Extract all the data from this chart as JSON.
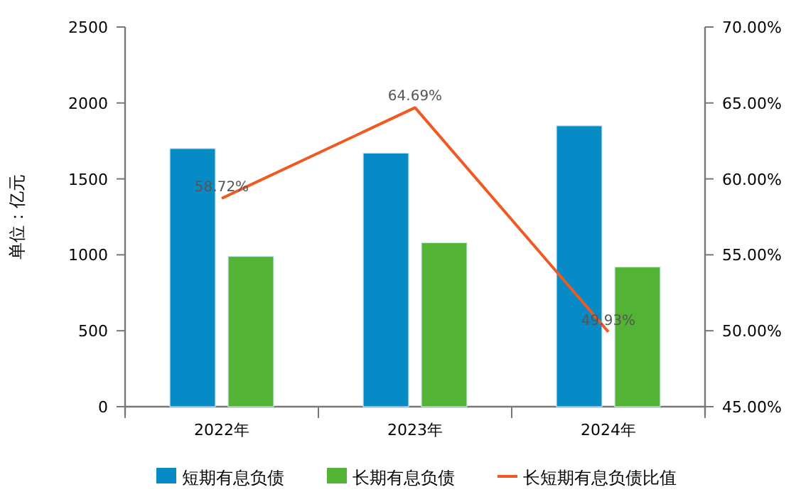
{
  "chart_data": {
    "type": "bar",
    "categories": [
      "2022年",
      "2023年",
      "2024年"
    ],
    "ylabel": "单位：亿元",
    "series": [
      {
        "name": "短期有息负债",
        "color": "#068bc6",
        "values": [
          1700,
          1670,
          1850
        ]
      },
      {
        "name": "长期有息负债",
        "color": "#53b334",
        "values": [
          990,
          1080,
          920
        ]
      },
      {
        "name": "长短期有息负债比值",
        "type": "line",
        "axis": "y2",
        "color": "#f05a22",
        "values": [
          58.72,
          64.69,
          49.93
        ],
        "value_labels": [
          "58.72%",
          "64.69%",
          "49.93%"
        ]
      }
    ],
    "ylim": [
      0,
      2500
    ],
    "yticks": [
      0,
      500,
      1000,
      1500,
      2000,
      2500
    ],
    "y2lim": [
      45,
      70
    ],
    "y2ticks": [
      {
        "value": 45,
        "label": "45.00%"
      },
      {
        "value": 50,
        "label": "50.00%"
      },
      {
        "value": 55,
        "label": "55.00%"
      },
      {
        "value": 60,
        "label": "60.00%"
      },
      {
        "value": 65,
        "label": "65.00%"
      },
      {
        "value": 70,
        "label": "70.00%"
      }
    ],
    "legend": "bottom"
  }
}
